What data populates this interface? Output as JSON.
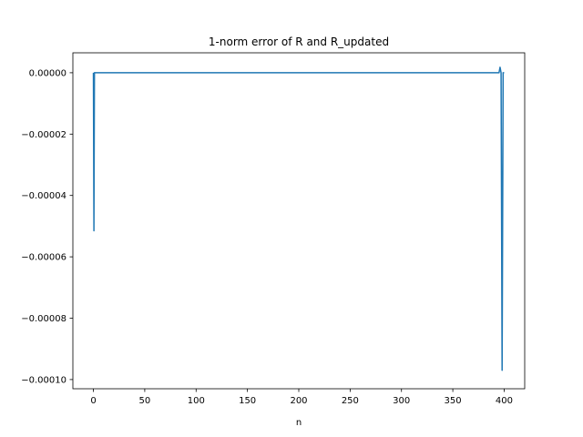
{
  "chart_data": {
    "type": "line",
    "title": "1-norm error of R and R_updated",
    "xlabel": "n",
    "ylabel": "",
    "xlim": [
      -20,
      420
    ],
    "ylim": [
      -0.000103,
      6.5e-06
    ],
    "xticks": [
      0,
      50,
      100,
      150,
      200,
      250,
      300,
      350,
      400
    ],
    "xtick_labels": [
      "0",
      "50",
      "100",
      "150",
      "200",
      "250",
      "300",
      "350",
      "400"
    ],
    "yticks": [
      0,
      -2e-05,
      -4e-05,
      -6e-05,
      -8e-05,
      -0.0001
    ],
    "ytick_labels": [
      "0.00000",
      "−0.00002",
      "−0.00004",
      "−0.00006",
      "−0.00008",
      "−0.00010"
    ],
    "grid": false,
    "legend": "none",
    "series": [
      {
        "color": "#1f77b4",
        "x": [
          0,
          0.5,
          1,
          2,
          5,
          100,
          200,
          300,
          390,
          395,
          396,
          397,
          398,
          399,
          400
        ],
        "y": [
          0,
          -5.15e-05,
          0,
          0,
          0,
          0,
          0,
          0,
          0,
          0,
          1.8e-06,
          0,
          -9.7e-05,
          0,
          0
        ]
      }
    ]
  }
}
